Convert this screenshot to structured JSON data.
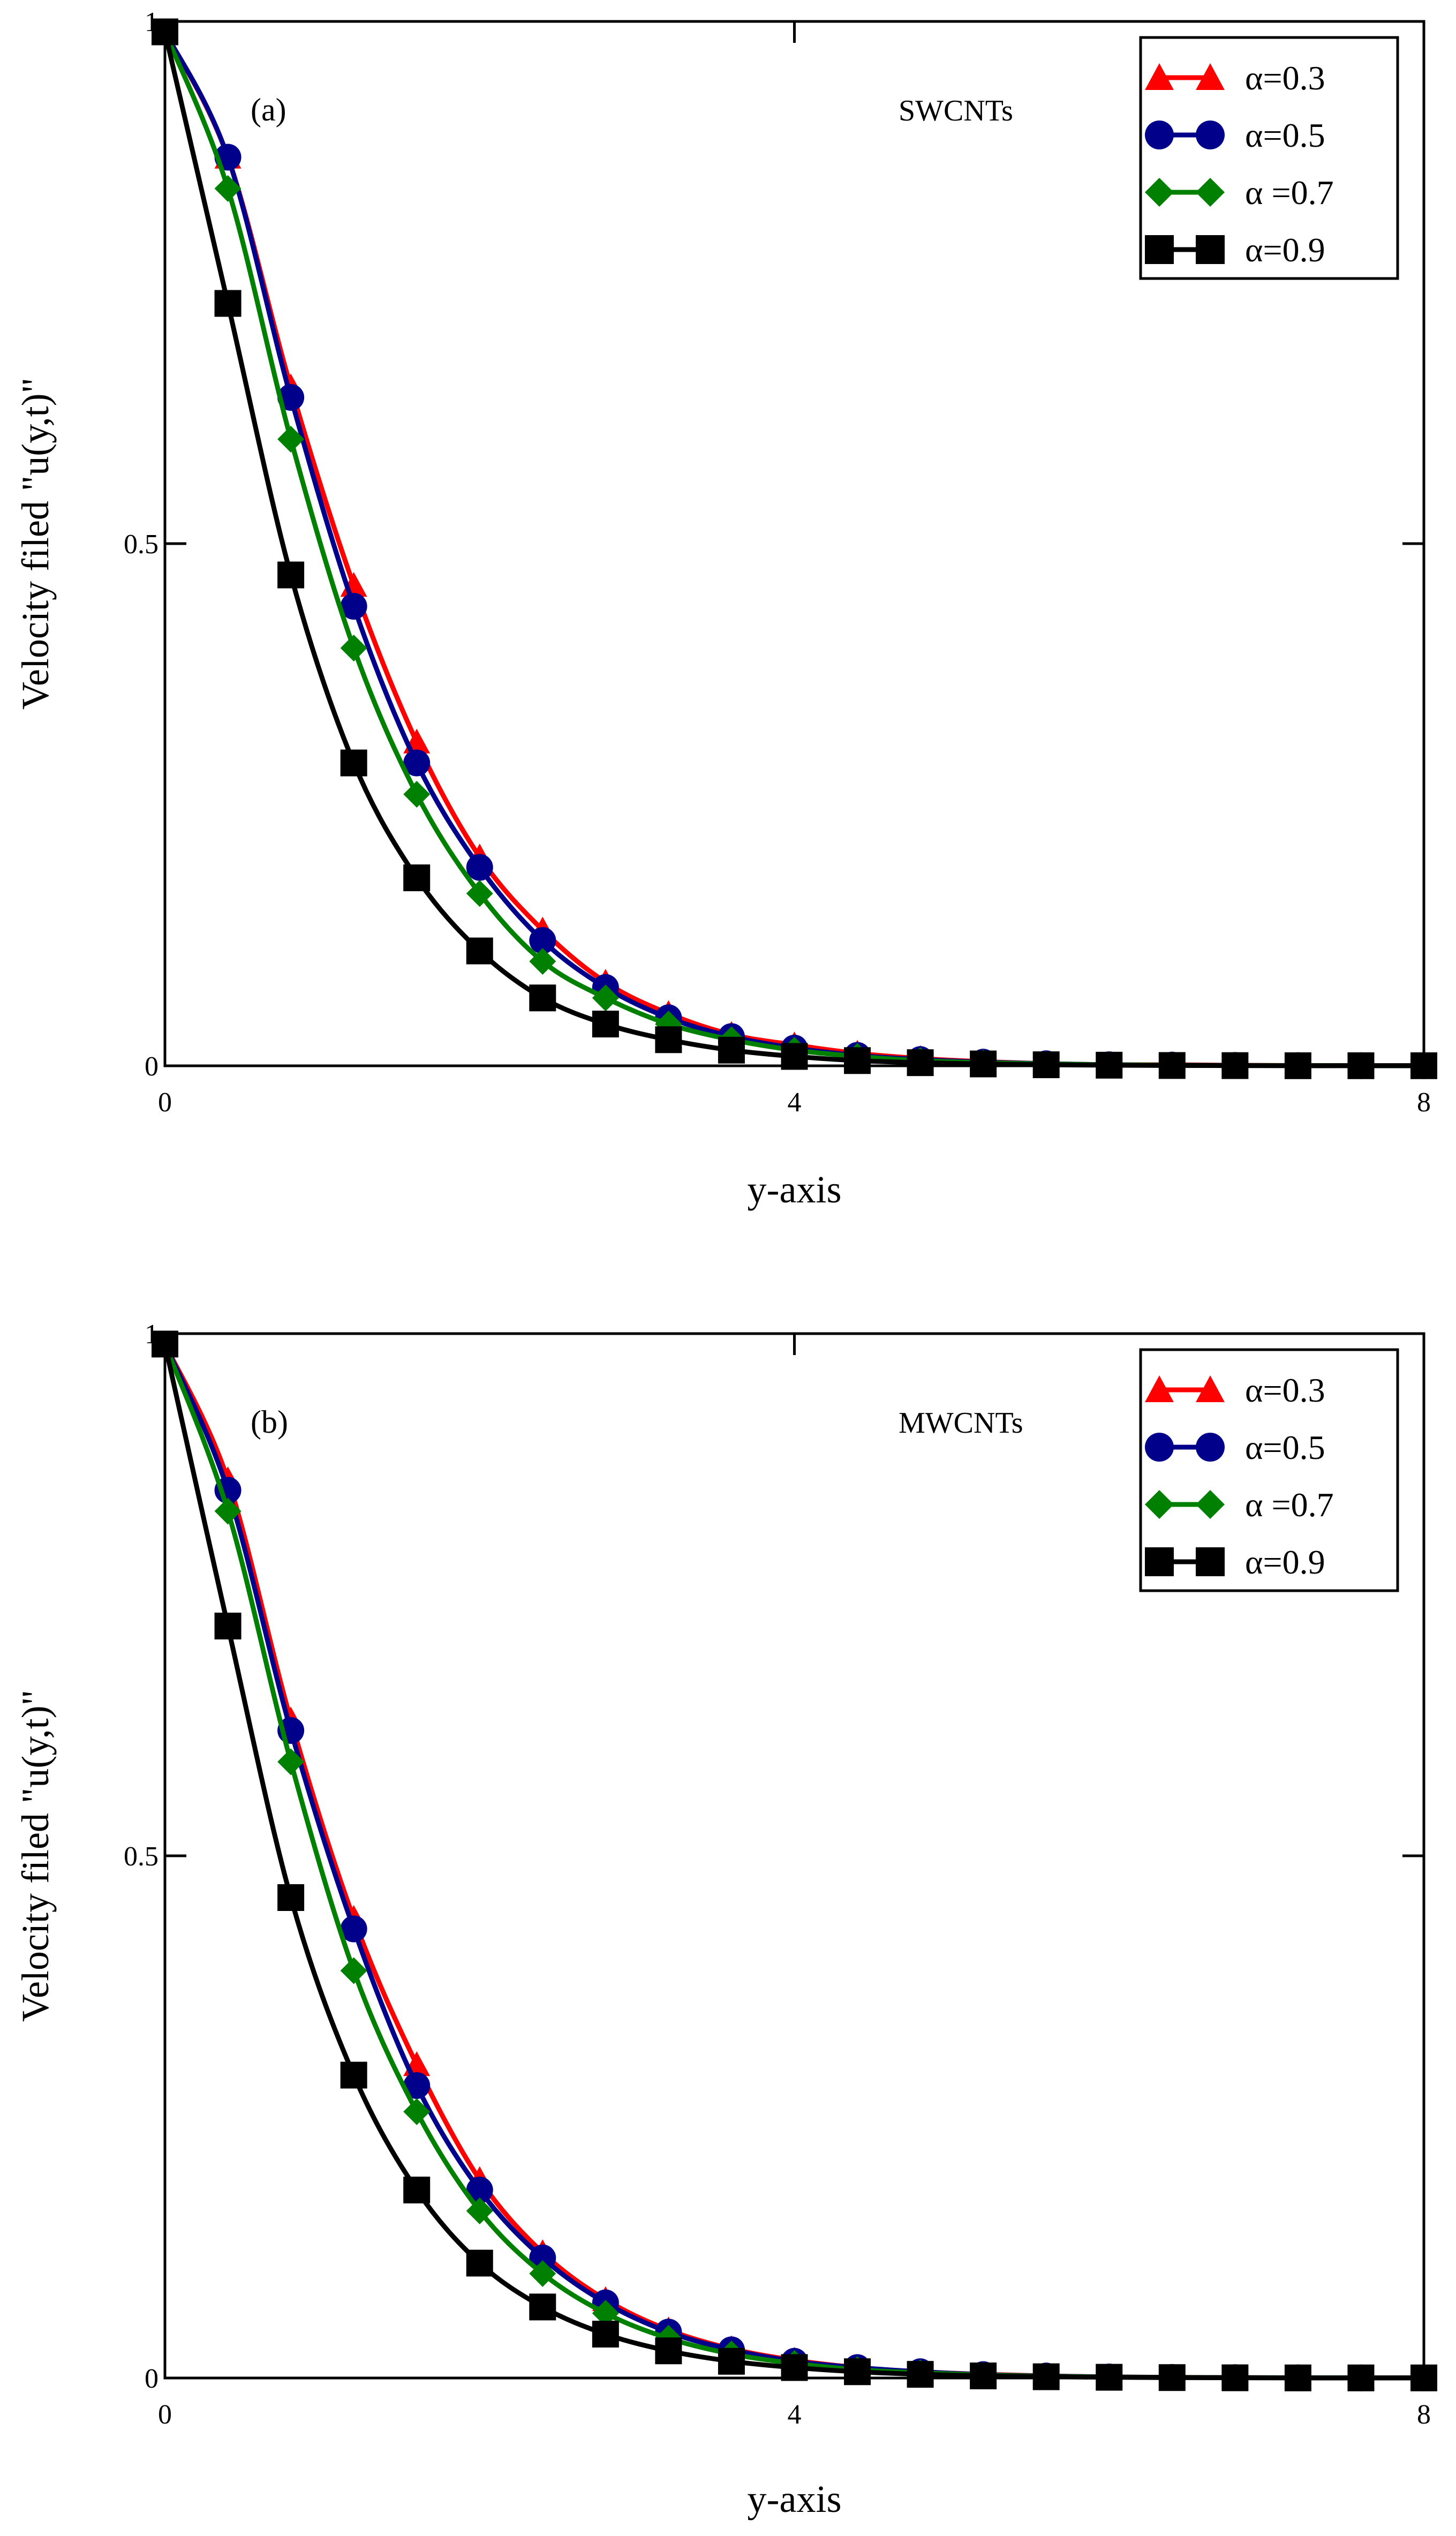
{
  "chart_data": [
    {
      "type": "line",
      "panel_label": "(a)",
      "annotation": "SWCNTs",
      "xlabel": "y-axis",
      "ylabel": "Velocity filed \"u(y,t)\"",
      "xlim": [
        0,
        8
      ],
      "ylim": [
        0,
        1
      ],
      "x_ticks": [
        "0",
        "4",
        "8"
      ],
      "y_ticks": [
        "0",
        "0.5",
        "1"
      ],
      "legend_position": "top-right",
      "grid": false,
      "x": [
        0,
        0.4,
        0.8,
        1.2,
        1.6,
        2.0,
        2.4,
        2.8,
        3.2,
        3.6,
        4.0,
        4.4,
        4.8,
        5.2,
        5.6,
        6.0,
        6.4,
        6.8,
        7.2,
        7.6,
        8.0
      ],
      "series": [
        {
          "name": "α=0.3",
          "color": "#ff0000",
          "marker": "triangle",
          "values": [
            0.99,
            0.87,
            0.65,
            0.46,
            0.31,
            0.2,
            0.13,
            0.08,
            0.05,
            0.03,
            0.02,
            0.012,
            0.007,
            0.004,
            0.002,
            0.001,
            0.001,
            0.0005,
            0.0003,
            0.0002,
            0.0001
          ]
        },
        {
          "name": "α=0.5",
          "color": "#00008b",
          "marker": "circle",
          "values": [
            0.99,
            0.87,
            0.64,
            0.44,
            0.29,
            0.19,
            0.12,
            0.075,
            0.046,
            0.028,
            0.017,
            0.01,
            0.006,
            0.0035,
            0.002,
            0.001,
            0.0007,
            0.0004,
            0.0002,
            0.0001,
            0.0001
          ]
        },
        {
          "name": "α =0.7",
          "color": "#008000",
          "marker": "diamond",
          "values": [
            0.99,
            0.84,
            0.6,
            0.4,
            0.26,
            0.165,
            0.1,
            0.065,
            0.04,
            0.025,
            0.015,
            0.009,
            0.005,
            0.003,
            0.0017,
            0.001,
            0.0006,
            0.0003,
            0.0002,
            0.0001,
            0.0001
          ]
        },
        {
          "name": "α=0.9",
          "color": "#000000",
          "marker": "square",
          "values": [
            0.99,
            0.73,
            0.47,
            0.29,
            0.18,
            0.11,
            0.065,
            0.04,
            0.025,
            0.015,
            0.009,
            0.005,
            0.003,
            0.0018,
            0.001,
            0.0006,
            0.0003,
            0.0002,
            0.0001,
            0.0001,
            0.0001
          ]
        }
      ]
    },
    {
      "type": "line",
      "panel_label": "(b)",
      "annotation": "MWCNTs",
      "xlabel": "y-axis",
      "ylabel": "Velocity filed \"u(y,t)\"",
      "xlim": [
        0,
        8
      ],
      "ylim": [
        0,
        1
      ],
      "x_ticks": [
        "0",
        "4",
        "8"
      ],
      "y_ticks": [
        "0",
        "0.5",
        "1"
      ],
      "legend_position": "top-right",
      "grid": false,
      "x": [
        0,
        0.4,
        0.8,
        1.2,
        1.6,
        2.0,
        2.4,
        2.8,
        3.2,
        3.6,
        4.0,
        4.4,
        4.8,
        5.2,
        5.6,
        6.0,
        6.4,
        6.8,
        7.2,
        7.6,
        8.0
      ],
      "series": [
        {
          "name": "α=0.3",
          "color": "#ff0000",
          "marker": "triangle",
          "values": [
            0.99,
            0.86,
            0.63,
            0.44,
            0.3,
            0.19,
            0.12,
            0.075,
            0.046,
            0.028,
            0.017,
            0.01,
            0.006,
            0.0035,
            0.002,
            0.001,
            0.0007,
            0.0004,
            0.0002,
            0.0001,
            0.0001
          ]
        },
        {
          "name": "α=0.5",
          "color": "#00008b",
          "marker": "circle",
          "values": [
            0.99,
            0.85,
            0.62,
            0.43,
            0.28,
            0.18,
            0.115,
            0.072,
            0.044,
            0.027,
            0.016,
            0.01,
            0.006,
            0.0033,
            0.0019,
            0.001,
            0.0006,
            0.0004,
            0.0002,
            0.0001,
            0.0001
          ]
        },
        {
          "name": "α =0.7",
          "color": "#008000",
          "marker": "diamond",
          "values": [
            0.99,
            0.83,
            0.59,
            0.39,
            0.255,
            0.16,
            0.1,
            0.062,
            0.038,
            0.023,
            0.014,
            0.008,
            0.005,
            0.0028,
            0.0016,
            0.0009,
            0.0005,
            0.0003,
            0.0002,
            0.0001,
            0.0001
          ]
        },
        {
          "name": "α=0.9",
          "color": "#000000",
          "marker": "square",
          "values": [
            0.99,
            0.72,
            0.46,
            0.29,
            0.18,
            0.11,
            0.068,
            0.042,
            0.026,
            0.016,
            0.01,
            0.006,
            0.0035,
            0.002,
            0.0012,
            0.0007,
            0.0004,
            0.0002,
            0.0001,
            0.0001,
            0.0001
          ]
        }
      ]
    }
  ]
}
